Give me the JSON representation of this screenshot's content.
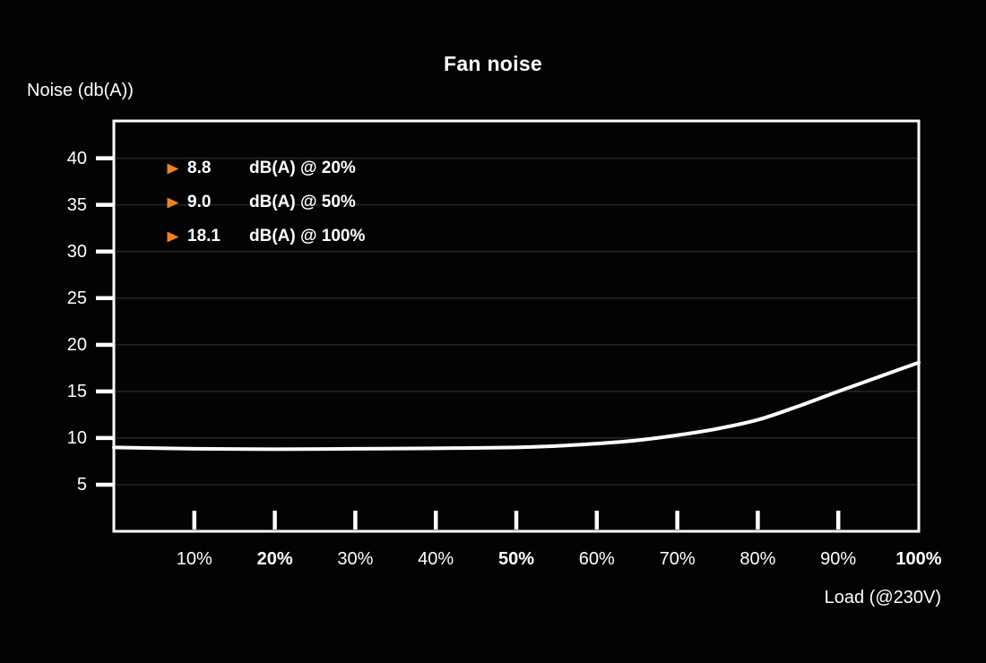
{
  "title": "Fan noise",
  "y_axis_label": "Noise (db(A))",
  "x_axis_label": "Load (@230V)",
  "colors": {
    "background": "#030303",
    "text": "#ffffff",
    "accent_orange": "#ee821c",
    "curve": "#ffffff",
    "grid": "rgba(255,255,255,0.14)",
    "axis": "#ffffff"
  },
  "legend": [
    {
      "marker": "right-arrow",
      "value": "8.8",
      "label": "dB(A) @ 20%"
    },
    {
      "marker": "right-arrow",
      "value": "9.0",
      "label": "dB(A) @ 50%"
    },
    {
      "marker": "right-arrow",
      "value": "18.1",
      "label": "dB(A) @ 100%"
    }
  ],
  "chart_data": {
    "type": "line",
    "title": "Fan noise",
    "xlabel": "Load (@230V)",
    "ylabel": "Noise (db(A))",
    "xlim": [
      0,
      100
    ],
    "ylim": [
      0,
      44
    ],
    "grid": true,
    "legend_position": "top-left-inside",
    "y_ticks": [
      5,
      10,
      15,
      20,
      25,
      30,
      35,
      40
    ],
    "x_ticks": [
      {
        "pos": 10,
        "label": "10%",
        "bold": false,
        "tick": true
      },
      {
        "pos": 20,
        "label": "20%",
        "bold": true,
        "tick": true
      },
      {
        "pos": 30,
        "label": "30%",
        "bold": false,
        "tick": true
      },
      {
        "pos": 40,
        "label": "40%",
        "bold": false,
        "tick": true
      },
      {
        "pos": 50,
        "label": "50%",
        "bold": true,
        "tick": true
      },
      {
        "pos": 60,
        "label": "60%",
        "bold": false,
        "tick": true
      },
      {
        "pos": 70,
        "label": "70%",
        "bold": false,
        "tick": true
      },
      {
        "pos": 80,
        "label": "80%",
        "bold": false,
        "tick": true
      },
      {
        "pos": 90,
        "label": "90%",
        "bold": false,
        "tick": true
      },
      {
        "pos": 100,
        "label": "100%",
        "bold": true,
        "tick": false
      }
    ],
    "series": [
      {
        "name": "Fan noise dB(A) vs load",
        "color": "#ffffff",
        "x": [
          0,
          10,
          20,
          30,
          40,
          50,
          55,
          60,
          65,
          70,
          75,
          80,
          85,
          90,
          95,
          100
        ],
        "y": [
          9.0,
          8.85,
          8.8,
          8.85,
          8.9,
          9.0,
          9.15,
          9.4,
          9.75,
          10.3,
          11.0,
          11.95,
          13.4,
          15.0,
          16.55,
          18.1
        ]
      }
    ],
    "annotated_points": [
      {
        "load_pct": 20,
        "noise_db": 8.8
      },
      {
        "load_pct": 50,
        "noise_db": 9.0
      },
      {
        "load_pct": 100,
        "noise_db": 18.1
      }
    ]
  }
}
